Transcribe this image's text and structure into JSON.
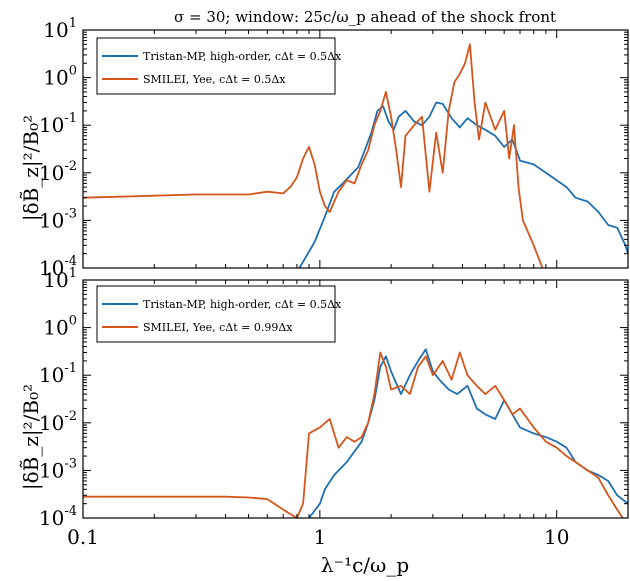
{
  "figure": {
    "title": "σ = 30; window: 25c/ω_p ahead of the shock front",
    "xlabel": "λ⁻¹c/ω_p",
    "ylabel": "|δB̃_z|²/B₀²"
  },
  "colors": {
    "blue": "#1f6fb3",
    "orange": "#d4561c"
  },
  "chart_data": [
    {
      "type": "line",
      "xscale": "log",
      "yscale": "log",
      "xlim": [
        0.1,
        20
      ],
      "ylim": [
        0.0001,
        10
      ],
      "xticks": [
        0.1,
        1,
        10
      ],
      "yticks": [
        0.0001,
        0.001,
        0.01,
        0.1,
        1,
        10
      ],
      "legend_position": "top-left",
      "series": [
        {
          "name": "Tristan-MP, high-order, cΔt = 0.5Δx",
          "color": "#1f6fb3",
          "points": [
            [
              0.82,
              0.0001
            ],
            [
              0.95,
              0.00035
            ],
            [
              1.05,
              0.0012
            ],
            [
              1.15,
              0.004
            ],
            [
              1.25,
              0.006
            ],
            [
              1.35,
              0.009
            ],
            [
              1.45,
              0.013
            ],
            [
              1.55,
              0.03
            ],
            [
              1.65,
              0.07
            ],
            [
              1.75,
              0.2
            ],
            [
              1.85,
              0.25
            ],
            [
              1.95,
              0.12
            ],
            [
              2.05,
              0.08
            ],
            [
              2.15,
              0.15
            ],
            [
              2.3,
              0.2
            ],
            [
              2.5,
              0.12
            ],
            [
              2.7,
              0.1
            ],
            [
              2.9,
              0.15
            ],
            [
              3.1,
              0.3
            ],
            [
              3.3,
              0.28
            ],
            [
              3.6,
              0.14
            ],
            [
              3.9,
              0.09
            ],
            [
              4.2,
              0.14
            ],
            [
              4.6,
              0.1
            ],
            [
              5.0,
              0.08
            ],
            [
              5.5,
              0.06
            ],
            [
              6.0,
              0.035
            ],
            [
              6.5,
              0.05
            ],
            [
              7.0,
              0.018
            ],
            [
              8.0,
              0.015
            ],
            [
              9.0,
              0.01
            ],
            [
              10.0,
              0.007
            ],
            [
              11.0,
              0.005
            ],
            [
              12.0,
              0.003
            ],
            [
              13.5,
              0.0025
            ],
            [
              15.0,
              0.0015
            ],
            [
              16.5,
              0.0008
            ],
            [
              18.0,
              0.0007
            ],
            [
              19.5,
              0.0003
            ],
            [
              20,
              0.0002
            ]
          ]
        },
        {
          "name": "SMILEI, Yee, cΔt = 0.5Δx",
          "color": "#d4561c",
          "points": [
            [
              0.1,
              0.003
            ],
            [
              0.2,
              0.0033
            ],
            [
              0.3,
              0.0035
            ],
            [
              0.4,
              0.0035
            ],
            [
              0.5,
              0.0035
            ],
            [
              0.6,
              0.004
            ],
            [
              0.7,
              0.0037
            ],
            [
              0.75,
              0.005
            ],
            [
              0.8,
              0.008
            ],
            [
              0.85,
              0.02
            ],
            [
              0.9,
              0.035
            ],
            [
              0.95,
              0.015
            ],
            [
              1.0,
              0.004
            ],
            [
              1.05,
              0.002
            ],
            [
              1.1,
              0.0015
            ],
            [
              1.2,
              0.004
            ],
            [
              1.3,
              0.007
            ],
            [
              1.4,
              0.006
            ],
            [
              1.5,
              0.015
            ],
            [
              1.6,
              0.03
            ],
            [
              1.7,
              0.1
            ],
            [
              1.8,
              0.2
            ],
            [
              1.9,
              0.5
            ],
            [
              2.0,
              0.15
            ],
            [
              2.1,
              0.03
            ],
            [
              2.2,
              0.005
            ],
            [
              2.3,
              0.06
            ],
            [
              2.5,
              0.1
            ],
            [
              2.7,
              0.15
            ],
            [
              2.9,
              0.004
            ],
            [
              3.1,
              0.07
            ],
            [
              3.3,
              0.01
            ],
            [
              3.5,
              0.2
            ],
            [
              3.7,
              0.8
            ],
            [
              3.9,
              1.2
            ],
            [
              4.1,
              2.0
            ],
            [
              4.3,
              5.0
            ],
            [
              4.5,
              0.3
            ],
            [
              4.7,
              0.05
            ],
            [
              5.0,
              0.3
            ],
            [
              5.5,
              0.08
            ],
            [
              6.0,
              0.2
            ],
            [
              6.3,
              0.02
            ],
            [
              6.6,
              0.1
            ],
            [
              6.9,
              0.005
            ],
            [
              7.2,
              0.001
            ],
            [
              8.0,
              0.0003
            ],
            [
              8.7,
              0.0001
            ]
          ]
        }
      ]
    },
    {
      "type": "line",
      "xscale": "log",
      "yscale": "log",
      "xlim": [
        0.1,
        20
      ],
      "ylim": [
        0.0001,
        10
      ],
      "xticks": [
        0.1,
        1,
        10
      ],
      "yticks": [
        0.0001,
        0.001,
        0.01,
        0.1,
        1,
        10
      ],
      "legend_position": "top-left",
      "series": [
        {
          "name": "Tristan-MP, high-order, cΔt = 0.5Δx",
          "color": "#1f6fb3",
          "points": [
            [
              0.9,
              0.0001
            ],
            [
              1.0,
              0.0002
            ],
            [
              1.05,
              0.0004
            ],
            [
              1.15,
              0.0008
            ],
            [
              1.3,
              0.0015
            ],
            [
              1.5,
              0.004
            ],
            [
              1.6,
              0.01
            ],
            [
              1.7,
              0.03
            ],
            [
              1.8,
              0.15
            ],
            [
              1.9,
              0.25
            ],
            [
              2.0,
              0.12
            ],
            [
              2.2,
              0.04
            ],
            [
              2.4,
              0.1
            ],
            [
              2.6,
              0.2
            ],
            [
              2.8,
              0.35
            ],
            [
              3.0,
              0.12
            ],
            [
              3.2,
              0.08
            ],
            [
              3.5,
              0.05
            ],
            [
              3.8,
              0.04
            ],
            [
              4.2,
              0.06
            ],
            [
              4.6,
              0.02
            ],
            [
              5.0,
              0.015
            ],
            [
              5.5,
              0.012
            ],
            [
              6.0,
              0.03
            ],
            [
              6.5,
              0.015
            ],
            [
              7.0,
              0.008
            ],
            [
              8.0,
              0.006
            ],
            [
              9.0,
              0.005
            ],
            [
              10.0,
              0.004
            ],
            [
              11.0,
              0.003
            ],
            [
              12.0,
              0.0015
            ],
            [
              13.5,
              0.001
            ],
            [
              15.0,
              0.0008
            ],
            [
              16.5,
              0.0006
            ],
            [
              18.0,
              0.0003
            ],
            [
              20.0,
              0.0002
            ]
          ]
        },
        {
          "name": "SMILEI, Yee, cΔt = 0.99Δx",
          "color": "#d4561c",
          "points": [
            [
              0.1,
              0.00028
            ],
            [
              0.2,
              0.00028
            ],
            [
              0.3,
              0.00028
            ],
            [
              0.4,
              0.00028
            ],
            [
              0.5,
              0.00027
            ],
            [
              0.6,
              0.00025
            ],
            [
              0.7,
              0.00015
            ],
            [
              0.8,
              0.0001
            ],
            [
              0.85,
              0.0002
            ],
            [
              0.9,
              0.006
            ],
            [
              1.0,
              0.008
            ],
            [
              1.1,
              0.012
            ],
            [
              1.2,
              0.003
            ],
            [
              1.3,
              0.005
            ],
            [
              1.4,
              0.004
            ],
            [
              1.5,
              0.005
            ],
            [
              1.6,
              0.01
            ],
            [
              1.7,
              0.04
            ],
            [
              1.8,
              0.3
            ],
            [
              1.9,
              0.15
            ],
            [
              2.0,
              0.05
            ],
            [
              2.2,
              0.06
            ],
            [
              2.4,
              0.04
            ],
            [
              2.6,
              0.15
            ],
            [
              2.8,
              0.25
            ],
            [
              3.0,
              0.1
            ],
            [
              3.3,
              0.2
            ],
            [
              3.6,
              0.08
            ],
            [
              3.9,
              0.3
            ],
            [
              4.2,
              0.1
            ],
            [
              4.6,
              0.06
            ],
            [
              5.0,
              0.04
            ],
            [
              5.5,
              0.06
            ],
            [
              6.0,
              0.03
            ],
            [
              6.5,
              0.015
            ],
            [
              7.0,
              0.02
            ],
            [
              8.0,
              0.008
            ],
            [
              9.0,
              0.004
            ],
            [
              10.0,
              0.003
            ],
            [
              11.0,
              0.002
            ],
            [
              12.0,
              0.0015
            ],
            [
              13.5,
              0.001
            ],
            [
              15.0,
              0.0007
            ],
            [
              16.5,
              0.0003
            ],
            [
              18.0,
              0.00015
            ],
            [
              19.0,
              0.0001
            ]
          ]
        }
      ]
    }
  ],
  "text": {
    "top_legend_1": "Tristan-MP, high-order, cΔt = 0.5Δx",
    "top_legend_2": "SMILEI, Yee, cΔt = 0.5Δx",
    "bot_legend_1": "Tristan-MP, high-order, cΔt = 0.5Δx",
    "bot_legend_2": "SMILEI, Yee, cΔt = 0.99Δx"
  }
}
